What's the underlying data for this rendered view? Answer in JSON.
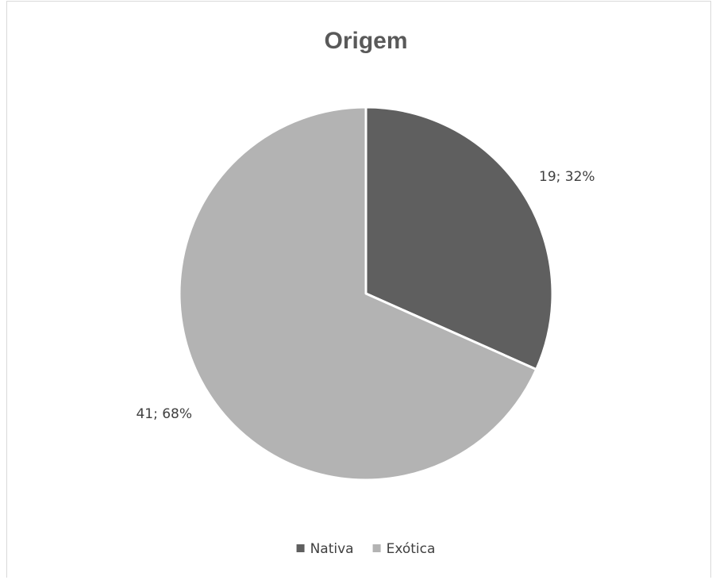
{
  "chart_data": {
    "type": "pie",
    "title": "Origem",
    "categories": [
      "Nativa",
      "Exótica"
    ],
    "values": [
      19,
      41
    ],
    "percentages": [
      32,
      68
    ],
    "data_labels": [
      "19; 32%",
      "41; 68%"
    ],
    "colors": [
      "#5f5f5f",
      "#b3b3b3"
    ],
    "legend_position": "bottom",
    "start_angle_deg": 0,
    "direction": "clockwise"
  }
}
